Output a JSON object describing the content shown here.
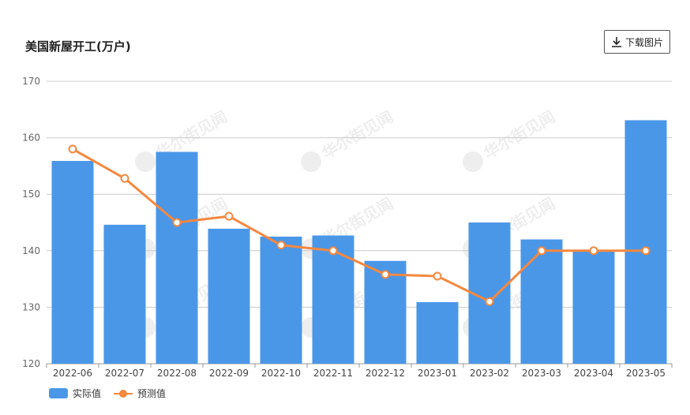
{
  "header": {
    "title": "美国新屋开工(万户)",
    "download_label": "下载图片"
  },
  "watermark": "华尔街见闻",
  "colors": {
    "bar": "#4a97e8",
    "line": "#f5883f",
    "grid": "#cccccc",
    "axis_text": "#666666"
  },
  "chart_data": {
    "type": "bar",
    "title": "美国新屋开工(万户)",
    "categories": [
      "2022-06",
      "2022-07",
      "2022-08",
      "2022-09",
      "2022-10",
      "2022-11",
      "2022-12",
      "2023-01",
      "2023-02",
      "2023-03",
      "2023-04",
      "2023-05"
    ],
    "ylim": [
      120,
      170
    ],
    "yticks": [
      120,
      130,
      140,
      150,
      160,
      170
    ],
    "grid": true,
    "legend_position": "bottom-left",
    "series": [
      {
        "name": "实际值",
        "type": "bar",
        "values": [
          155.9,
          144.6,
          157.5,
          143.9,
          142.5,
          142.7,
          138.2,
          130.9,
          145.0,
          142.0,
          140.0,
          163.1
        ]
      },
      {
        "name": "预测值",
        "type": "line",
        "values": [
          158.0,
          152.8,
          145.0,
          146.1,
          141.0,
          140.0,
          135.8,
          135.5,
          131.0,
          140.0,
          140.0,
          140.0
        ]
      }
    ]
  }
}
